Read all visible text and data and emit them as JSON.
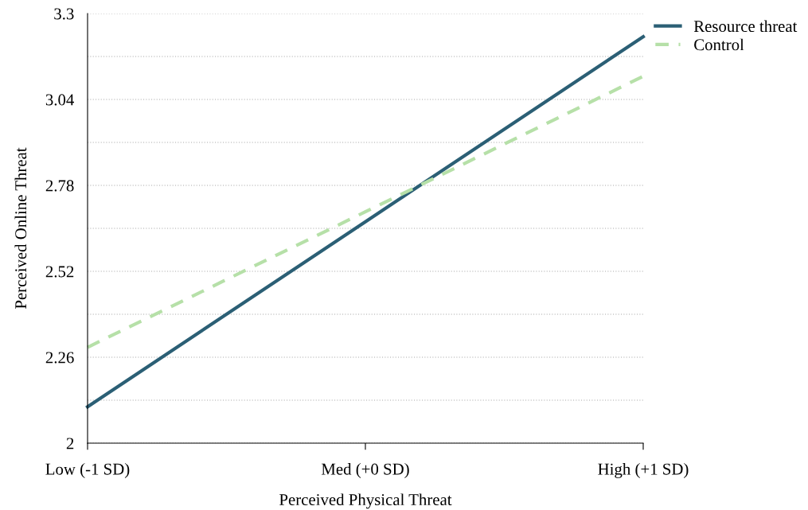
{
  "chart_data": {
    "type": "line",
    "xlabel": "Perceived Physical Threat",
    "ylabel": "Perceived Online Threat",
    "categories": [
      "Low (-1 SD)",
      "Med (+0 SD)",
      "High (+1 SD)"
    ],
    "series": [
      {
        "name": "Resource threat",
        "color": "#2b5f75",
        "values": [
          2.11,
          2.67,
          3.23
        ],
        "line_style": "solid"
      },
      {
        "name": "Control",
        "color": "#b6e0a8",
        "values": [
          2.29,
          2.7,
          3.11
        ],
        "line_style": "dashed"
      }
    ],
    "ylim": [
      2,
      3.3
    ],
    "yticks": [
      2,
      {
        "value": 2.13,
        "label": null
      },
      2.26,
      {
        "value": 2.39,
        "label": null
      },
      2.52,
      {
        "value": 2.65,
        "label": null
      },
      2.78,
      {
        "value": 2.91,
        "label": null
      },
      3.04,
      {
        "value": 3.17,
        "label": null
      },
      3.3
    ],
    "grid": "y",
    "legend": "top right",
    "marker": "none"
  }
}
